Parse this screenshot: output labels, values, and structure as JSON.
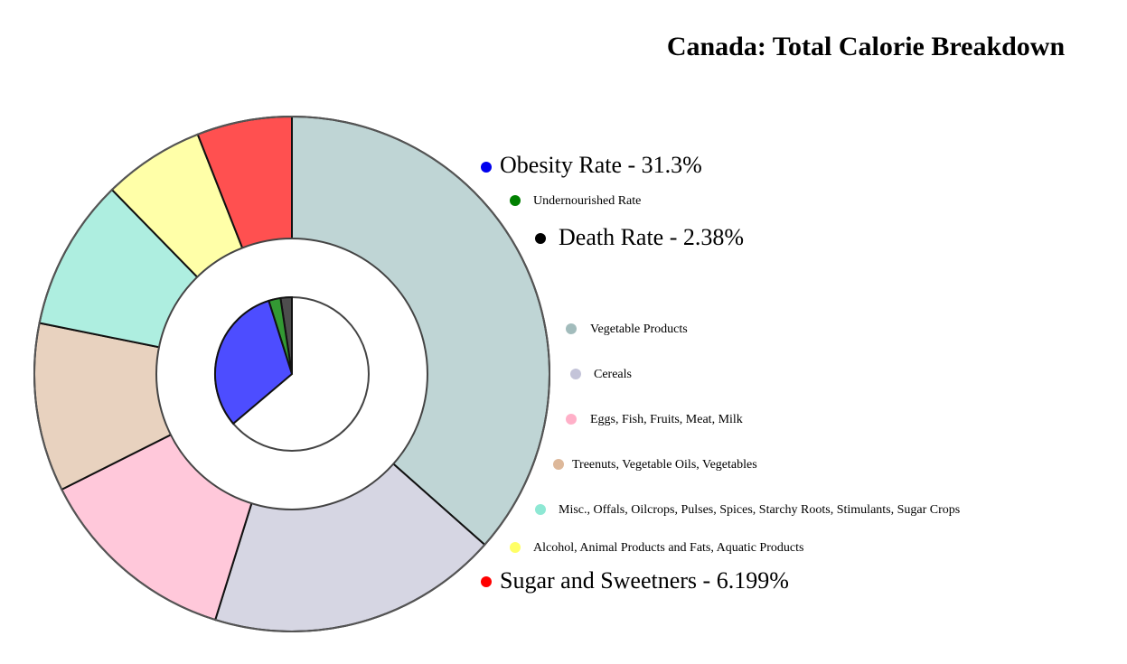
{
  "chart_data": {
    "type": "pie",
    "title": "Canada: Total Calorie Breakdown",
    "outer_ring": {
      "unit": "%",
      "slices": [
        {
          "label": "Vegetable Products",
          "value": 38.0,
          "color": "#bfd5d5"
        },
        {
          "label": "Cereals",
          "value": 19.0,
          "color": "#d6d6e3"
        },
        {
          "label": "Eggs, Fish, Fruits, Meat, Milk",
          "value": 13.3,
          "color": "#ffc8da"
        },
        {
          "label": "Treenuts, Vegetable Oils, Vegetables",
          "value": 11.0,
          "color": "#e8d2bf"
        },
        {
          "label": "Misc., Offals, Oilcrops, Pulses, Spices, Starchy Roots, Stimulants, Sugar Crops",
          "value": 9.9,
          "color": "#aeeee0"
        },
        {
          "label": "Alcohol, Animal Products and Fats, Aquatic Products",
          "value": 6.6,
          "color": "#ffffa8"
        },
        {
          "label": "Sugar and Sweetners - 6.199%",
          "value": 6.199,
          "color": "#ff5050"
        }
      ]
    },
    "inner_ring": {
      "unit": "%",
      "slices": [
        {
          "label": "Obesity Rate - 31.3%",
          "value": 31.3,
          "color": "#4d4dff"
        },
        {
          "label": "Undernourished Rate",
          "value": 2.5,
          "color": "#339933"
        },
        {
          "label": "Death Rate - 2.38%",
          "value": 2.38,
          "color": "#4d4d4d"
        }
      ],
      "remainder_color": "#ffffff"
    },
    "legend": [
      {
        "text": "Obesity Rate - 31.3%",
        "dot_color": "#0000ee",
        "size": "large"
      },
      {
        "text": "Undernourished Rate",
        "dot_color": "#008000",
        "size": "small"
      },
      {
        "text": "Death Rate - 2.38%",
        "dot_color": "#000000",
        "size": "large"
      },
      {
        "text": "Vegetable Products",
        "dot_color": "#a2bcbc",
        "size": "small"
      },
      {
        "text": "Cereals",
        "dot_color": "#c4c4d9",
        "size": "small"
      },
      {
        "text": "Eggs, Fish, Fruits, Meat, Milk",
        "dot_color": "#ffb0c8",
        "size": "small"
      },
      {
        "text": "Treenuts, Vegetable Oils, Vegetables",
        "dot_color": "#ddb89a",
        "size": "small"
      },
      {
        "text": "Misc., Offals, Oilcrops, Pulses, Spices, Starchy Roots, Stimulants, Sugar Crops",
        "dot_color": "#8ee8d4",
        "size": "small"
      },
      {
        "text": "Alcohol, Animal Products and Fats, Aquatic Products",
        "dot_color": "#ffff66",
        "size": "small"
      },
      {
        "text": "Sugar and Sweetners - 6.199%",
        "dot_color": "#ff0000",
        "size": "large"
      }
    ]
  }
}
